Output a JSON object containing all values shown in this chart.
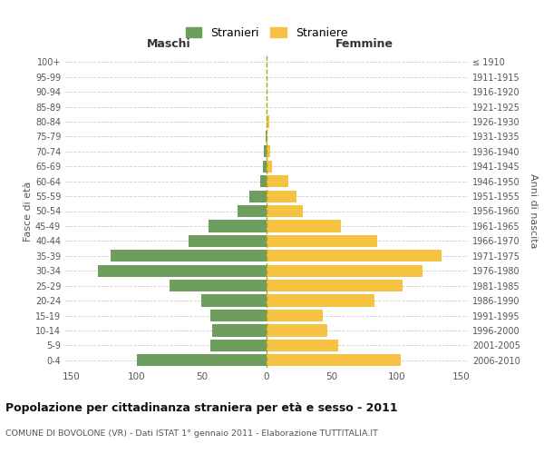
{
  "age_groups": [
    "0-4",
    "5-9",
    "10-14",
    "15-19",
    "20-24",
    "25-29",
    "30-34",
    "35-39",
    "40-44",
    "45-49",
    "50-54",
    "55-59",
    "60-64",
    "65-69",
    "70-74",
    "75-79",
    "80-84",
    "85-89",
    "90-94",
    "95-99",
    "100+"
  ],
  "birth_years": [
    "2006-2010",
    "2001-2005",
    "1996-2000",
    "1991-1995",
    "1986-1990",
    "1981-1985",
    "1976-1980",
    "1971-1975",
    "1966-1970",
    "1961-1965",
    "1956-1960",
    "1951-1955",
    "1946-1950",
    "1941-1945",
    "1936-1940",
    "1931-1935",
    "1926-1930",
    "1921-1925",
    "1916-1920",
    "1911-1915",
    "≤ 1910"
  ],
  "maschi": [
    100,
    43,
    42,
    43,
    50,
    75,
    130,
    120,
    60,
    45,
    22,
    13,
    5,
    3,
    2,
    1,
    0,
    0,
    0,
    0,
    0
  ],
  "femmine": [
    103,
    55,
    47,
    43,
    83,
    105,
    120,
    135,
    85,
    57,
    28,
    23,
    17,
    4,
    3,
    1,
    2,
    0,
    0,
    0,
    0
  ],
  "maschi_color": "#6d9e5e",
  "femmine_color": "#f5c242",
  "grid_color": "#cccccc",
  "title": "Popolazione per cittadinanza straniera per età e sesso - 2011",
  "subtitle": "COMUNE DI BOVOLONE (VR) - Dati ISTAT 1° gennaio 2011 - Elaborazione TUTTITALIA.IT",
  "xlabel_left": "Maschi",
  "xlabel_right": "Femmine",
  "ylabel_left": "Fasce di età",
  "ylabel_right": "Anni di nascita",
  "legend_stranieri": "Stranieri",
  "legend_straniere": "Straniere",
  "xlim": 155
}
